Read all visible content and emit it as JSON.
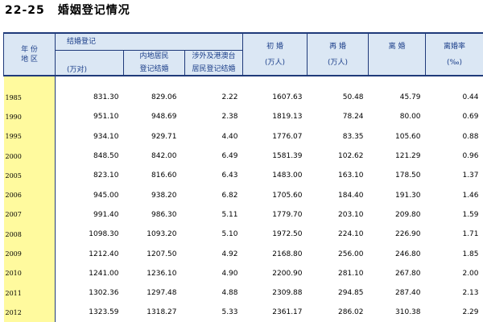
{
  "title": {
    "number": "22-25",
    "text": "婚姻登记情况"
  },
  "headers": {
    "year": [
      "年 份",
      "地 区"
    ],
    "marriage_group": "结婚登记",
    "marriage_unit": "(万对)",
    "mainland": [
      "内地居民",
      "登记结婚"
    ],
    "foreign": [
      "涉外及港澳台",
      "居民登记结婚"
    ],
    "first": "初 婚",
    "first_unit": "(万人)",
    "re": "再 婚",
    "re_unit": "(万人)",
    "divorce": "离 婚",
    "divorce_rate": "离婚率",
    "divorce_rate_unit": "(‰)"
  },
  "rows": [
    {
      "year": "1985",
      "marriage": "831.30",
      "mainland": "829.06",
      "foreign": "2.22",
      "first": "1607.63",
      "re": "50.48",
      "divorce": "45.79",
      "rate": "0.44"
    },
    {
      "year": "1990",
      "marriage": "951.10",
      "mainland": "948.69",
      "foreign": "2.38",
      "first": "1819.13",
      "re": "78.24",
      "divorce": "80.00",
      "rate": "0.69"
    },
    {
      "year": "1995",
      "marriage": "934.10",
      "mainland": "929.71",
      "foreign": "4.40",
      "first": "1776.07",
      "re": "83.35",
      "divorce": "105.60",
      "rate": "0.88"
    },
    {
      "year": "2000",
      "marriage": "848.50",
      "mainland": "842.00",
      "foreign": "6.49",
      "first": "1581.39",
      "re": "102.62",
      "divorce": "121.29",
      "rate": "0.96"
    },
    {
      "year": "2005",
      "marriage": "823.10",
      "mainland": "816.60",
      "foreign": "6.43",
      "first": "1483.00",
      "re": "163.10",
      "divorce": "178.50",
      "rate": "1.37"
    },
    {
      "year": "2006",
      "marriage": "945.00",
      "mainland": "938.20",
      "foreign": "6.82",
      "first": "1705.60",
      "re": "184.40",
      "divorce": "191.30",
      "rate": "1.46"
    },
    {
      "year": "2007",
      "marriage": "991.40",
      "mainland": "986.30",
      "foreign": "5.11",
      "first": "1779.70",
      "re": "203.10",
      "divorce": "209.80",
      "rate": "1.59"
    },
    {
      "year": "2008",
      "marriage": "1098.30",
      "mainland": "1093.20",
      "foreign": "5.10",
      "first": "1972.50",
      "re": "224.10",
      "divorce": "226.90",
      "rate": "1.71"
    },
    {
      "year": "2009",
      "marriage": "1212.40",
      "mainland": "1207.50",
      "foreign": "4.92",
      "first": "2168.80",
      "re": "256.00",
      "divorce": "246.80",
      "rate": "1.85"
    },
    {
      "year": "2010",
      "marriage": "1241.00",
      "mainland": "1236.10",
      "foreign": "4.90",
      "first": "2200.90",
      "re": "281.10",
      "divorce": "267.80",
      "rate": "2.00"
    },
    {
      "year": "2011",
      "marriage": "1302.36",
      "mainland": "1297.48",
      "foreign": "4.88",
      "first": "2309.88",
      "re": "294.85",
      "divorce": "287.40",
      "rate": "2.13"
    },
    {
      "year": "2012",
      "marriage": "1323.59",
      "mainland": "1318.27",
      "foreign": "5.33",
      "first": "2361.17",
      "re": "286.02",
      "divorce": "310.38",
      "rate": "2.29"
    }
  ]
}
